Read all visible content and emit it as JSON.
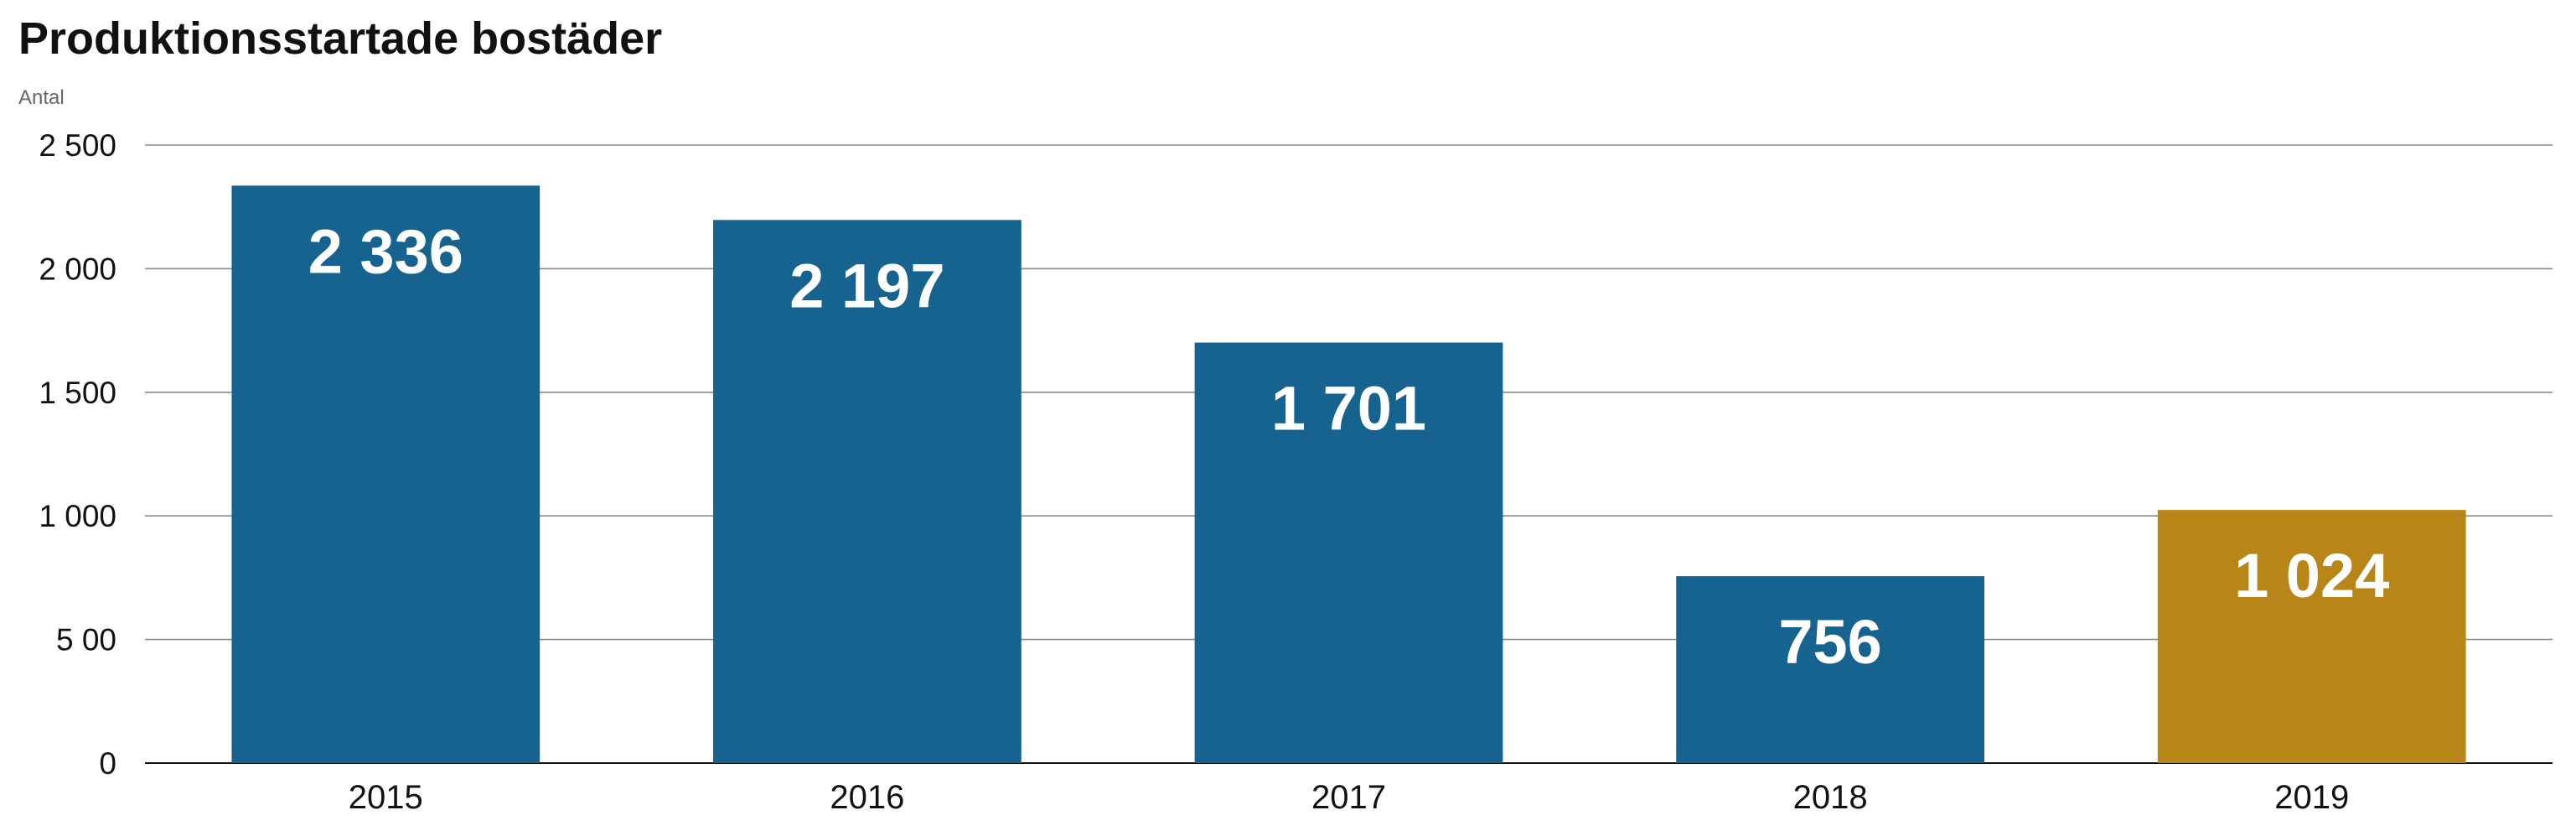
{
  "chart_data": {
    "type": "bar",
    "title": "Produktionsstartade bostäder",
    "ylabel": "Antal",
    "categories": [
      "2015",
      "2016",
      "2017",
      "2018",
      "2019"
    ],
    "values": [
      2336,
      2197,
      1701,
      756,
      1024
    ],
    "value_labels": [
      "2 336",
      "2 197",
      "1 701",
      "756",
      "1 024"
    ],
    "ylim": [
      0,
      2500
    ],
    "y_ticks": [
      {
        "value": 0,
        "label": "0"
      },
      {
        "value": 500,
        "label": "5 00"
      },
      {
        "value": 1000,
        "label": "1 000"
      },
      {
        "value": 1500,
        "label": "1 500"
      },
      {
        "value": 2000,
        "label": "2 000"
      },
      {
        "value": 2500,
        "label": "2 500"
      }
    ],
    "grid": true,
    "colors": {
      "bar_default": "#176390",
      "bar_highlight": "#B88618",
      "grid": "#8A8A8A",
      "axis": "#111111",
      "value_label": "#FFFFFF",
      "tick_label": "#111111",
      "ylabel": "#666666"
    },
    "highlight_index": 4
  }
}
